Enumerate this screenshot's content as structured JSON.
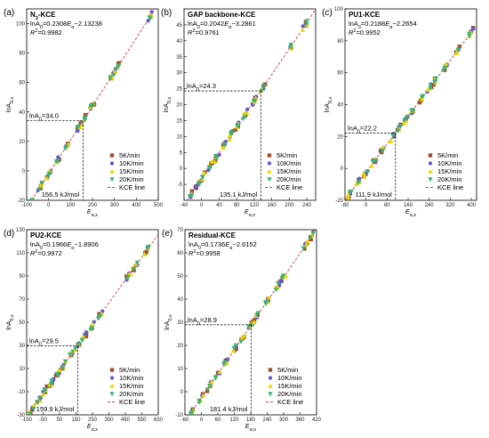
{
  "legend_labels": [
    "5K/min",
    "10K/min",
    "15K/min",
    "20K/min",
    "KCE line"
  ],
  "x_axis_label": "E",
  "x_axis_sub": "α,x",
  "y_axis_label": "lnA",
  "y_axis_sub": "0,x",
  "colors": {
    "5K": "#a0522d",
    "10K": "#6a5acd",
    "15K": "#e8d800",
    "20K": "#3cb371",
    "kce": "#d93b3b",
    "guide": "#000000"
  },
  "chart_data": [
    {
      "type": "scatter",
      "panel_label": "(a)",
      "title_main": "N",
      "title_sub": "3",
      "title_rest": "-KCE",
      "eq_line1": "lnA0=0.2308Eα−2.13238",
      "eq_line2": "R2=0.9982",
      "slope": 0.2308,
      "intercept": -2.13238,
      "xlim": [
        -100,
        500
      ],
      "ylim": [
        -20,
        110
      ],
      "xticks": [
        -100,
        0,
        100,
        200,
        300,
        400,
        500
      ],
      "yticks": [
        -20,
        0,
        20,
        40,
        60,
        80,
        100
      ],
      "x_ann": "156.5 kJ/mol",
      "y_ann": "lnA0=34.0",
      "x_ann_value": 156.5,
      "y_ann_value": 34.0,
      "clusters": [
        -80,
        -40,
        0,
        40,
        80,
        140,
        160,
        200,
        290,
        310,
        460
      ]
    },
    {
      "type": "scatter",
      "panel_label": "(b)",
      "title_main": "GAP backbone-KCE",
      "title_sub": "",
      "title_rest": "",
      "eq_line1": "lnA0=0.2042Eα−3.2861",
      "eq_line2": "R2=0.9761",
      "slope": 0.2042,
      "intercept": -3.2861,
      "xlim": [
        -40,
        260
      ],
      "ylim": [
        -10,
        50
      ],
      "xticks": [
        -40,
        0,
        40,
        80,
        120,
        160,
        200,
        240
      ],
      "yticks": [
        -5,
        0,
        5,
        10,
        15,
        20,
        25,
        30,
        35,
        40,
        45
      ],
      "x_ann": "135.1 kJ/mol",
      "y_ann": "lnA0=24.3",
      "x_ann_value": 135.1,
      "y_ann_value": 24.3,
      "clusters": [
        -25,
        -10,
        5,
        20,
        35,
        50,
        65,
        80,
        100,
        120,
        140,
        200,
        235
      ]
    },
    {
      "type": "scatter",
      "panel_label": "(c)",
      "title_main": "PU1-KCE",
      "title_sub": "",
      "title_rest": "",
      "eq_line1": "lnA0=0.2188Eα−2.2654",
      "eq_line2": "R2=0.9952",
      "slope": 0.2188,
      "intercept": -2.2654,
      "xlim": [
        -80,
        420
      ],
      "ylim": [
        -20,
        100
      ],
      "xticks": [
        -80,
        0,
        80,
        160,
        240,
        320,
        400
      ],
      "yticks": [
        -20,
        0,
        20,
        40,
        60,
        80,
        100
      ],
      "x_ann": "111.9 kJ/mol",
      "y_ann": "lnA0=22.2",
      "x_ann_value": 111.9,
      "y_ann_value": 22.2,
      "clusters": [
        -60,
        -30,
        0,
        30,
        60,
        100,
        125,
        150,
        180,
        210,
        240,
        260,
        300,
        350,
        400
      ]
    },
    {
      "type": "scatter",
      "panel_label": "(d)",
      "title_main": "PU2-KCE",
      "title_sub": "",
      "title_rest": "",
      "eq_line1": "lnA0=0.1966Eα−1.8906",
      "eq_line2": "R2=0.9972",
      "slope": 0.1966,
      "intercept": -1.8906,
      "xlim": [
        -150,
        650
      ],
      "ylim": [
        -30,
        130
      ],
      "xticks": [
        -150,
        -50,
        50,
        150,
        250,
        350,
        450,
        550,
        650
      ],
      "yticks": [
        -30,
        -10,
        10,
        30,
        50,
        70,
        90,
        110,
        130
      ],
      "x_ann": "159.9 kJ/mol",
      "y_ann": "lnA0=29.5",
      "x_ann_value": 159.9,
      "y_ann_value": 29.5,
      "clusters": [
        -120,
        -80,
        -40,
        0,
        40,
        80,
        120,
        160,
        200,
        250,
        300,
        470,
        510,
        580
      ]
    },
    {
      "type": "scatter",
      "panel_label": "(e)",
      "title_main": "Residual-KCE",
      "title_sub": "",
      "title_rest": "",
      "eq_line1": "lnA0=0.1736Eα−2.6152",
      "eq_line2": "R2=0.9958",
      "slope": 0.1736,
      "intercept": -2.6152,
      "xlim": [
        -60,
        420
      ],
      "ylim": [
        -10,
        70
      ],
      "xticks": [
        -60,
        0,
        60,
        120,
        180,
        240,
        300,
        360,
        420
      ],
      "yticks": [
        -10,
        0,
        10,
        20,
        30,
        40,
        50,
        60,
        70
      ],
      "x_ann": "181.4 kJ/mol",
      "y_ann": "lnA0=28.9",
      "x_ann_value": 181.4,
      "y_ann_value": 28.9,
      "clusters": [
        -30,
        0,
        30,
        60,
        90,
        120,
        150,
        180,
        200,
        240,
        280,
        300,
        380,
        400
      ]
    }
  ]
}
